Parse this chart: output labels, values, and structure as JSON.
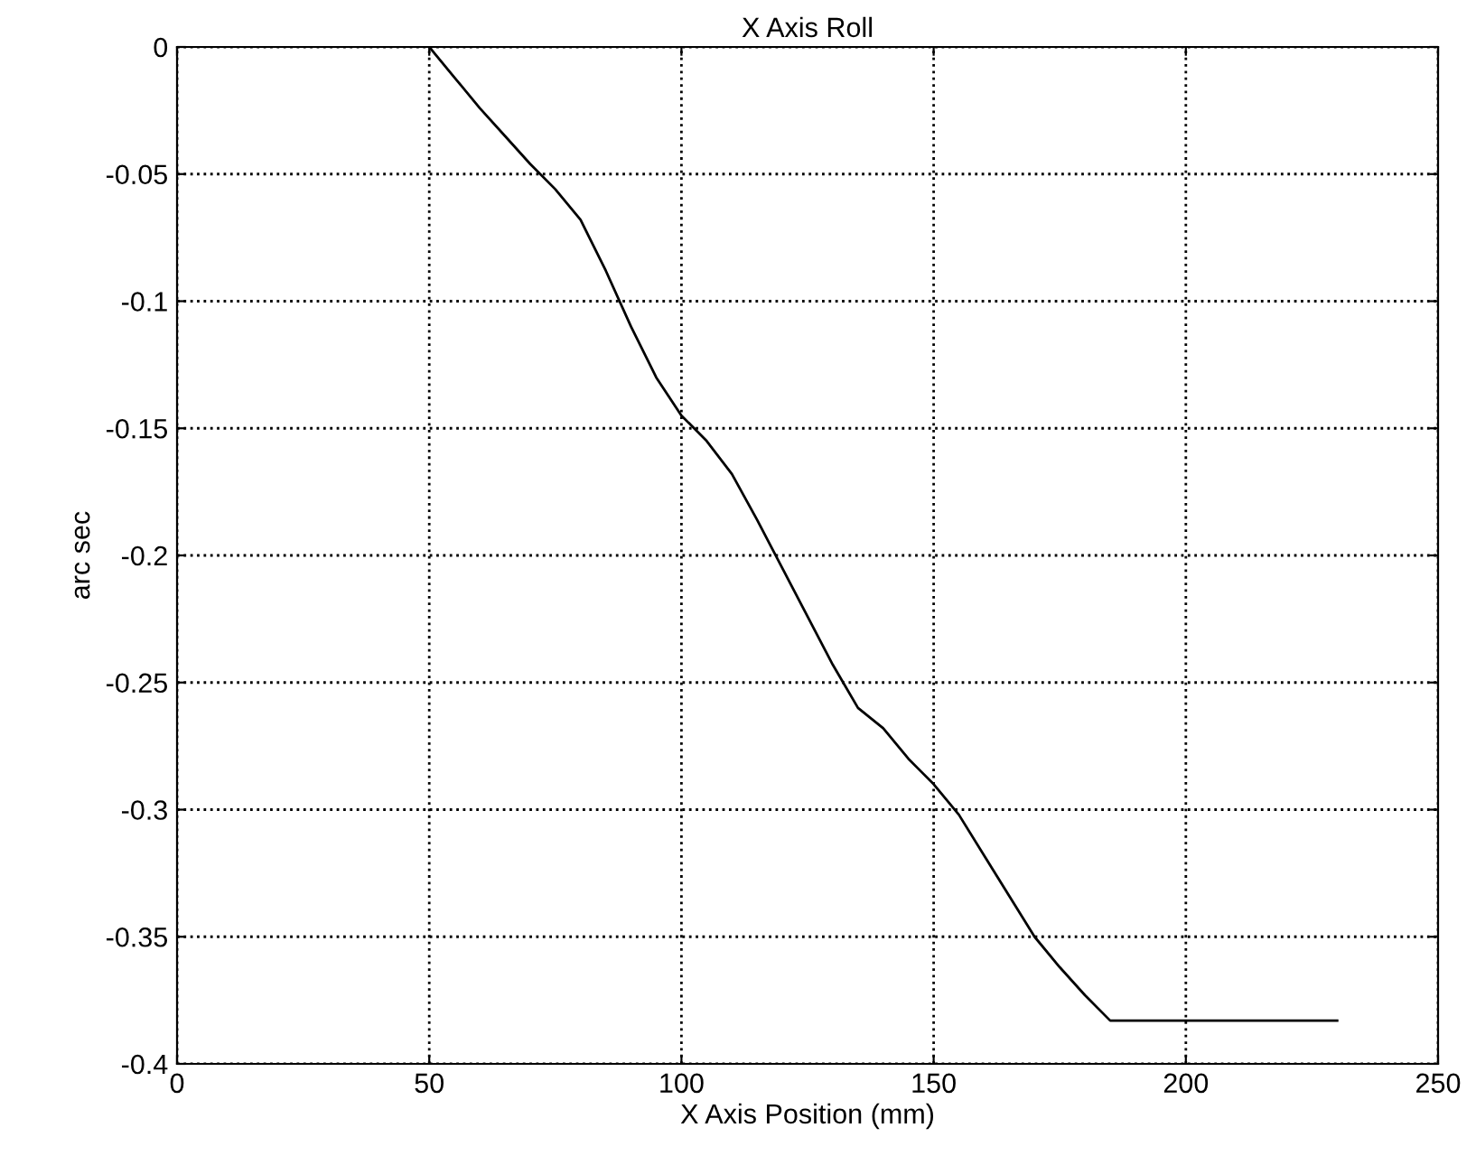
{
  "chart_data": {
    "type": "line",
    "title": "X Axis Roll",
    "xlabel": "X Axis Position (mm)",
    "ylabel": "arc sec",
    "x": [
      50,
      55,
      60,
      65,
      70,
      75,
      80,
      85,
      90,
      95,
      100,
      105,
      110,
      115,
      120,
      125,
      130,
      135,
      140,
      145,
      150,
      155,
      160,
      165,
      170,
      175,
      180,
      185,
      230
    ],
    "series": [
      {
        "color": "#000000",
        "values": [
          0,
          -0.012,
          -0.024,
          -0.035,
          -0.046,
          -0.056,
          -0.068,
          -0.088,
          -0.11,
          -0.13,
          -0.145,
          -0.155,
          -0.168,
          -0.186,
          -0.205,
          -0.224,
          -0.243,
          -0.26,
          -0.268,
          -0.28,
          -0.29,
          -0.302,
          -0.318,
          -0.334,
          -0.35,
          -0.362,
          -0.373,
          -0.383,
          -0.383
        ]
      }
    ],
    "xlim": [
      0,
      250
    ],
    "xticks": [
      0,
      50,
      100,
      150,
      200,
      250
    ],
    "ylim": [
      -0.4,
      0
    ],
    "yticks": [
      -0.4,
      -0.35,
      -0.3,
      -0.25,
      -0.2,
      -0.15,
      -0.1,
      -0.05,
      0
    ],
    "grid": true,
    "line_style": "solid",
    "marker": "none"
  }
}
